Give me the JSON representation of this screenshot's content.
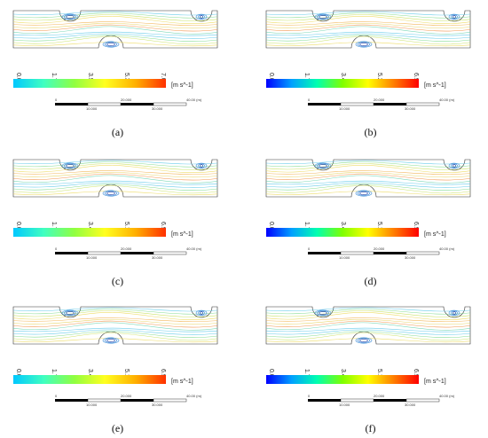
{
  "panels": [
    {
      "id": "a",
      "caption": "(a)",
      "ticks": [
        "0.00",
        "1.77",
        "3.53",
        "5.30",
        "7.07"
      ],
      "unit": "[m s^-1]",
      "colormap": "light",
      "scale_labels": {
        "top": [
          "0",
          "20.000",
          "40.00 (m)"
        ],
        "bottom": [
          "10.000",
          "30.000"
        ]
      }
    },
    {
      "id": "b",
      "caption": "(b)",
      "ticks": [
        "0.00",
        "1.73",
        "3.47",
        "5.20",
        "6.93"
      ],
      "unit": "[m s^-1]",
      "colormap": "full",
      "scale_labels": {
        "top": [
          "0",
          "20.000",
          "40.00 (m)"
        ],
        "bottom": [
          "10.000",
          "30.000"
        ]
      }
    },
    {
      "id": "c",
      "caption": "(c)",
      "ticks": [
        "0.00",
        "1.73",
        "3.46",
        "5.19",
        "6.93"
      ],
      "unit": "[m s^-1]",
      "colormap": "light",
      "scale_labels": {
        "top": [
          "0",
          "20.000",
          "40.00 (m)"
        ],
        "bottom": [
          "10.000",
          "30.000"
        ]
      }
    },
    {
      "id": "d",
      "caption": "(d)",
      "ticks": [
        "0.00",
        "1.73",
        "3.46",
        "5.19",
        "6.92"
      ],
      "unit": "[m s^-1]",
      "colormap": "full",
      "scale_labels": {
        "top": [
          "0",
          "20.000",
          "40.00 (m)"
        ],
        "bottom": [
          "10.000",
          "30.000"
        ]
      }
    },
    {
      "id": "e",
      "caption": "(e)",
      "ticks": [
        "0.00",
        "1.73",
        "3.46",
        "5.19",
        "6.92"
      ],
      "unit": "[m s^-1]",
      "colormap": "light",
      "scale_labels": {
        "top": [
          "0",
          "20.000",
          "40.00 (m)"
        ],
        "bottom": [
          "10.000",
          "30.000"
        ]
      }
    },
    {
      "id": "f",
      "caption": "(f)",
      "ticks": [
        "0.00",
        "1.73",
        "3.46",
        "5.19",
        "6.92"
      ],
      "unit": "[m s^-1]",
      "colormap": "full",
      "scale_labels": {
        "top": [
          "0",
          "20.000",
          "40.00 (m)"
        ],
        "bottom": [
          "10.000",
          "30.000"
        ]
      }
    }
  ],
  "colors": {
    "colormap_full": [
      "#0000ff",
      "#00a0ff",
      "#00ffb0",
      "#7fff00",
      "#ffff00",
      "#ff8000",
      "#ff0000"
    ],
    "colormap_light": [
      "#00c8ff",
      "#40ffc0",
      "#90ff40",
      "#ffff20",
      "#ffb000",
      "#ff3000"
    ]
  }
}
